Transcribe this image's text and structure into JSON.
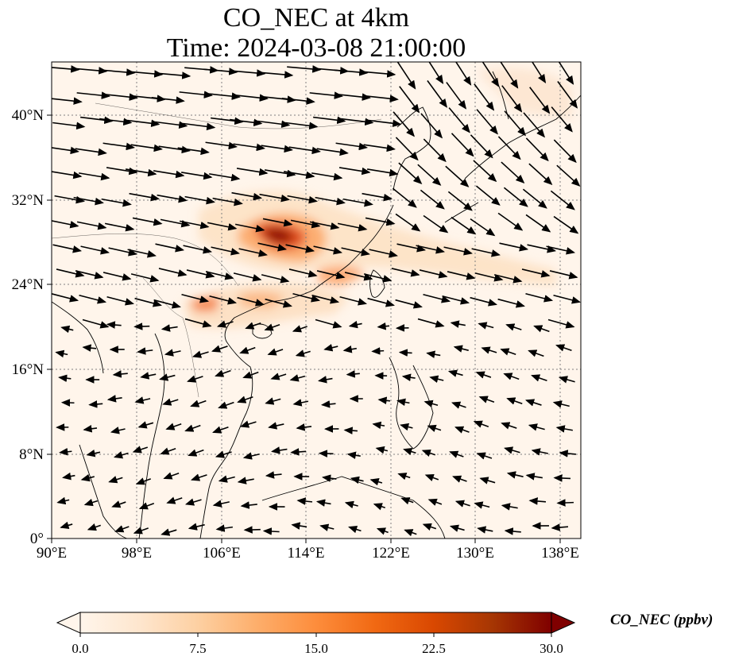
{
  "title": {
    "line1": "CO_NEC at 4km",
    "line2": "Time: 2024-03-08 21:00:00"
  },
  "map": {
    "lon_range": [
      90,
      140
    ],
    "lat_range": [
      0,
      45
    ],
    "lon_ticks": [
      "90°E",
      "98°E",
      "106°E",
      "114°E",
      "122°E",
      "130°E",
      "138°E"
    ],
    "lat_ticks": [
      "0°",
      "8°N",
      "16°N",
      "24°N",
      "32°N",
      "40°N"
    ],
    "gridlines": true,
    "field_color_low": "#fff5eb",
    "field_color_high": "#7f0000"
  },
  "colorbar": {
    "label": "CO_NEC (ppbv)",
    "ticks": [
      "0.0",
      "7.5",
      "15.0",
      "22.5",
      "30.0"
    ],
    "min": 0,
    "max": 30,
    "colormap": [
      "#fff5eb",
      "#fee6ce",
      "#fdd0a2",
      "#fdae6b",
      "#fd8d3c",
      "#f16913",
      "#d94801",
      "#a63603",
      "#7f0000"
    ],
    "extend": "both"
  }
}
